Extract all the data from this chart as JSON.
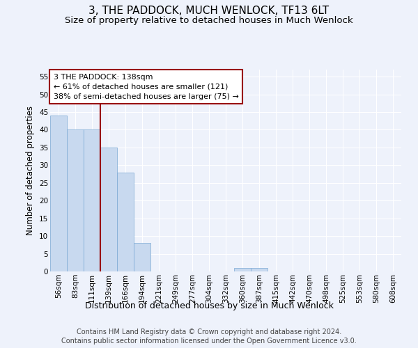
{
  "title": "3, THE PADDOCK, MUCH WENLOCK, TF13 6LT",
  "subtitle": "Size of property relative to detached houses in Much Wenlock",
  "xlabel": "Distribution of detached houses by size in Much Wenlock",
  "ylabel": "Number of detached properties",
  "categories": [
    "56sqm",
    "83sqm",
    "111sqm",
    "139sqm",
    "166sqm",
    "194sqm",
    "221sqm",
    "249sqm",
    "277sqm",
    "304sqm",
    "332sqm",
    "360sqm",
    "387sqm",
    "415sqm",
    "442sqm",
    "470sqm",
    "498sqm",
    "525sqm",
    "553sqm",
    "580sqm",
    "608sqm"
  ],
  "values": [
    44,
    40,
    40,
    35,
    28,
    8,
    0,
    0,
    0,
    0,
    0,
    1,
    1,
    0,
    0,
    0,
    0,
    0,
    0,
    0,
    0
  ],
  "bar_color": "#c8d9ef",
  "bar_edge_color": "#7aa8d4",
  "vline_color": "#990000",
  "vline_pos": 2.5,
  "annotation_text": "3 THE PADDOCK: 138sqm\n← 61% of detached houses are smaller (121)\n38% of semi-detached houses are larger (75) →",
  "annotation_box_edgecolor": "#990000",
  "annotation_text_color": "#000000",
  "ylim": [
    0,
    57
  ],
  "yticks": [
    0,
    5,
    10,
    15,
    20,
    25,
    30,
    35,
    40,
    45,
    50,
    55
  ],
  "footer1": "Contains HM Land Registry data © Crown copyright and database right 2024.",
  "footer2": "Contains public sector information licensed under the Open Government Licence v3.0.",
  "bg_color": "#eef2fb",
  "plot_bg_color": "#eef2fb",
  "title_fontsize": 11,
  "subtitle_fontsize": 9.5,
  "xlabel_fontsize": 9,
  "ylabel_fontsize": 8.5,
  "tick_fontsize": 7.5,
  "footer_fontsize": 7,
  "annot_fontsize": 8
}
